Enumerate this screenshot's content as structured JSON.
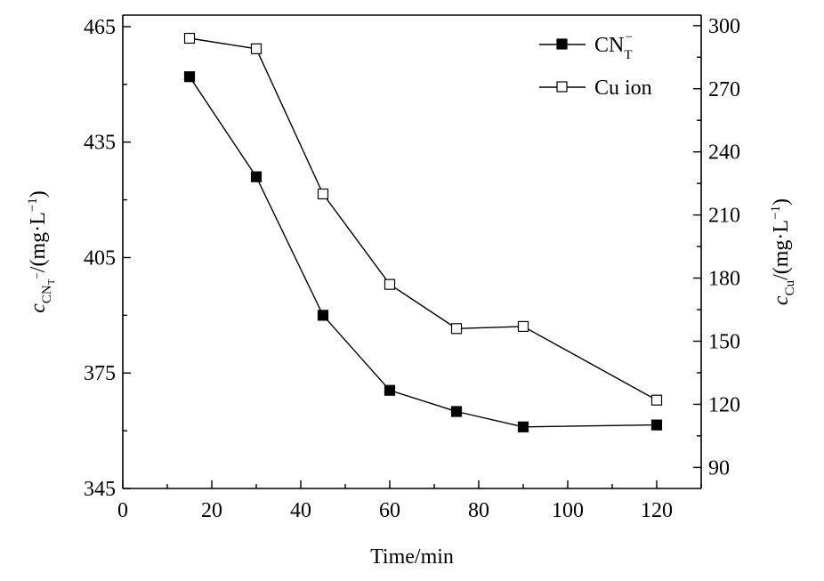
{
  "chart_data": {
    "type": "line",
    "xlabel": "Time/min",
    "ylabel_left": {
      "symbol": "c",
      "sub": "CN",
      "subsub": "T",
      "sup": "−",
      "unit": "/(mg·L",
      "unit_sup": "−1",
      "close": ")"
    },
    "ylabel_right": {
      "symbol": "c",
      "sub": "Cu",
      "unit": "/(mg·L",
      "unit_sup": "−1",
      "close": ")"
    },
    "xlim": [
      0,
      130
    ],
    "ylim_left": [
      345,
      468
    ],
    "ylim_right": [
      80,
      305
    ],
    "x_ticks": [
      0,
      20,
      40,
      60,
      80,
      100,
      120
    ],
    "y_left_ticks": [
      345,
      375,
      405,
      435,
      465
    ],
    "y_right_ticks": [
      90,
      120,
      150,
      180,
      210,
      240,
      270,
      300
    ],
    "legend": {
      "placement": "top-right"
    },
    "series": [
      {
        "name": "CN",
        "name_sub": "T",
        "name_sup": "−",
        "axis": "left",
        "marker": "filled-square",
        "x": [
          15,
          30,
          45,
          60,
          75,
          90,
          120
        ],
        "y": [
          452,
          426,
          390,
          370.5,
          365,
          361,
          361.5
        ]
      },
      {
        "name": "Cu ion",
        "axis": "right",
        "marker": "open-square",
        "x": [
          15,
          30,
          45,
          60,
          75,
          90,
          120
        ],
        "y": [
          294,
          289,
          220,
          177,
          156,
          157,
          122
        ]
      }
    ]
  }
}
